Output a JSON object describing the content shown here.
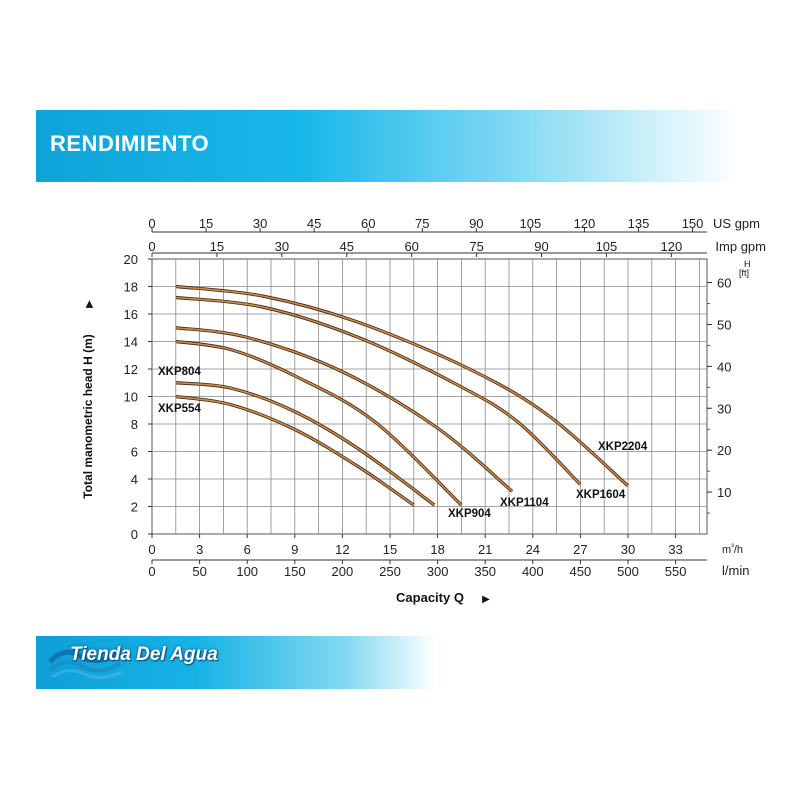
{
  "banner": {
    "title": "RENDIMIENTO"
  },
  "footer": {
    "brand": "Tienda Del Agua"
  },
  "chart_data": {
    "type": "line",
    "ylabel": "Total manometric head H (m)",
    "xlabel": "Capacity Q",
    "ylim": [
      0,
      20
    ],
    "yticks": [
      0,
      2,
      4,
      6,
      8,
      10,
      12,
      14,
      16,
      18,
      20
    ],
    "xlim": [
      0,
      35
    ],
    "xticks": [
      0,
      3,
      6,
      9,
      12,
      15,
      18,
      21,
      24,
      27,
      30,
      33
    ],
    "x_unit": "m³/h",
    "grid": true,
    "secondary_axes": {
      "us_gpm": {
        "unit": "US gpm",
        "ticks": [
          "0",
          "15",
          "30",
          "45",
          "60",
          "75",
          "90",
          "105",
          "120",
          "135",
          "150"
        ]
      },
      "imp_gpm": {
        "unit": "Imp gpm",
        "ticks": [
          "0",
          "15",
          "30",
          "45",
          "60",
          "75",
          "90",
          "105",
          "120"
        ]
      },
      "lmin": {
        "unit": "l/min",
        "ticks": [
          "0",
          "50",
          "100",
          "150",
          "200",
          "250",
          "300",
          "350",
          "400",
          "450",
          "500",
          "550"
        ]
      },
      "ft": {
        "unit": "H",
        "unit_sub": "[ft]",
        "ticks": [
          "10",
          "20",
          "30",
          "40",
          "50",
          "60"
        ]
      }
    },
    "series": [
      {
        "name": "XKP554",
        "x": [
          1.5,
          5,
          9,
          13,
          16.5
        ],
        "y": [
          10,
          9.4,
          7.6,
          4.9,
          2.1
        ]
      },
      {
        "name": "XKP804",
        "x": [
          1.5,
          5,
          9,
          13,
          17.8
        ],
        "y": [
          11,
          10.6,
          8.9,
          6.2,
          2.1
        ]
      },
      {
        "name": "XKP904",
        "x": [
          1.5,
          5,
          9,
          14,
          19.5
        ],
        "y": [
          14,
          13.4,
          11.5,
          8.2,
          2.1
        ]
      },
      {
        "name": "XKP1104",
        "x": [
          1.5,
          6,
          12,
          18,
          22.7
        ],
        "y": [
          15,
          14.3,
          11.8,
          7.7,
          3.1
        ]
      },
      {
        "name": "XKP1604",
        "x": [
          1.5,
          7,
          13,
          19,
          23,
          27
        ],
        "y": [
          17.2,
          16.5,
          14.3,
          11,
          8.2,
          3.6
        ]
      },
      {
        "name": "XKP2204",
        "x": [
          1.5,
          7,
          13,
          20,
          25,
          30
        ],
        "y": [
          18,
          17.3,
          15.4,
          12,
          8.6,
          3.5
        ]
      }
    ]
  }
}
